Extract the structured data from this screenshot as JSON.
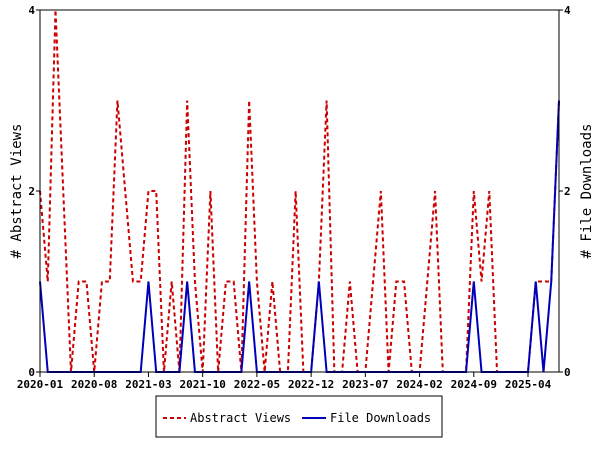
{
  "chart_data": {
    "type": "line",
    "title": "",
    "ylabel_left": "# Abstract Views",
    "ylabel_right": "# File Downloads",
    "xlabel": "",
    "ylim_left": [
      0,
      4
    ],
    "ylim_right": [
      0,
      4
    ],
    "yticks_left": [
      "0",
      "2",
      "4"
    ],
    "yticks_right": [
      "0",
      "2",
      "4"
    ],
    "xticks": [
      {
        "label": "2020-01",
        "index": 0
      },
      {
        "label": "2020-08",
        "index": 7
      },
      {
        "label": "2021-03",
        "index": 14
      },
      {
        "label": "2021-10",
        "index": 21
      },
      {
        "label": "2022-05",
        "index": 28
      },
      {
        "label": "2022-12",
        "index": 35
      },
      {
        "label": "2023-07",
        "index": 42
      },
      {
        "label": "2024-02",
        "index": 49
      },
      {
        "label": "2024-09",
        "index": 56
      },
      {
        "label": "2025-04",
        "index": 63
      }
    ],
    "legend_position": "bottom",
    "grid": false,
    "series": [
      {
        "name": "Abstract Views",
        "axis": "left",
        "color": "#cc0000",
        "dash": "dashed",
        "values": [
          2,
          1,
          4,
          2,
          0,
          1,
          1,
          0,
          1,
          1,
          3,
          2,
          1,
          1,
          2,
          2,
          0,
          1,
          0,
          3,
          1,
          0,
          2,
          0,
          1,
          1,
          0,
          3,
          1,
          0,
          1,
          0,
          0,
          2,
          0,
          0,
          1,
          3,
          0,
          0,
          1,
          0,
          0,
          1,
          2,
          0,
          1,
          1,
          0,
          0,
          1,
          2,
          0,
          0,
          0,
          0,
          2,
          1,
          2,
          0,
          0,
          0,
          0,
          0,
          1,
          1,
          1,
          3
        ]
      },
      {
        "name": "File Downloads",
        "axis": "right",
        "color": "#0000bb",
        "dash": "solid",
        "values": [
          1,
          0,
          0,
          0,
          0,
          0,
          0,
          0,
          0,
          0,
          0,
          0,
          0,
          0,
          1,
          0,
          0,
          0,
          0,
          1,
          0,
          0,
          0,
          0,
          0,
          0,
          0,
          1,
          0,
          0,
          0,
          0,
          0,
          0,
          0,
          0,
          1,
          0,
          0,
          0,
          0,
          0,
          0,
          0,
          0,
          0,
          0,
          0,
          0,
          0,
          0,
          0,
          0,
          0,
          0,
          0,
          1,
          0,
          0,
          0,
          0,
          0,
          0,
          0,
          1,
          0,
          1,
          3
        ]
      }
    ]
  }
}
